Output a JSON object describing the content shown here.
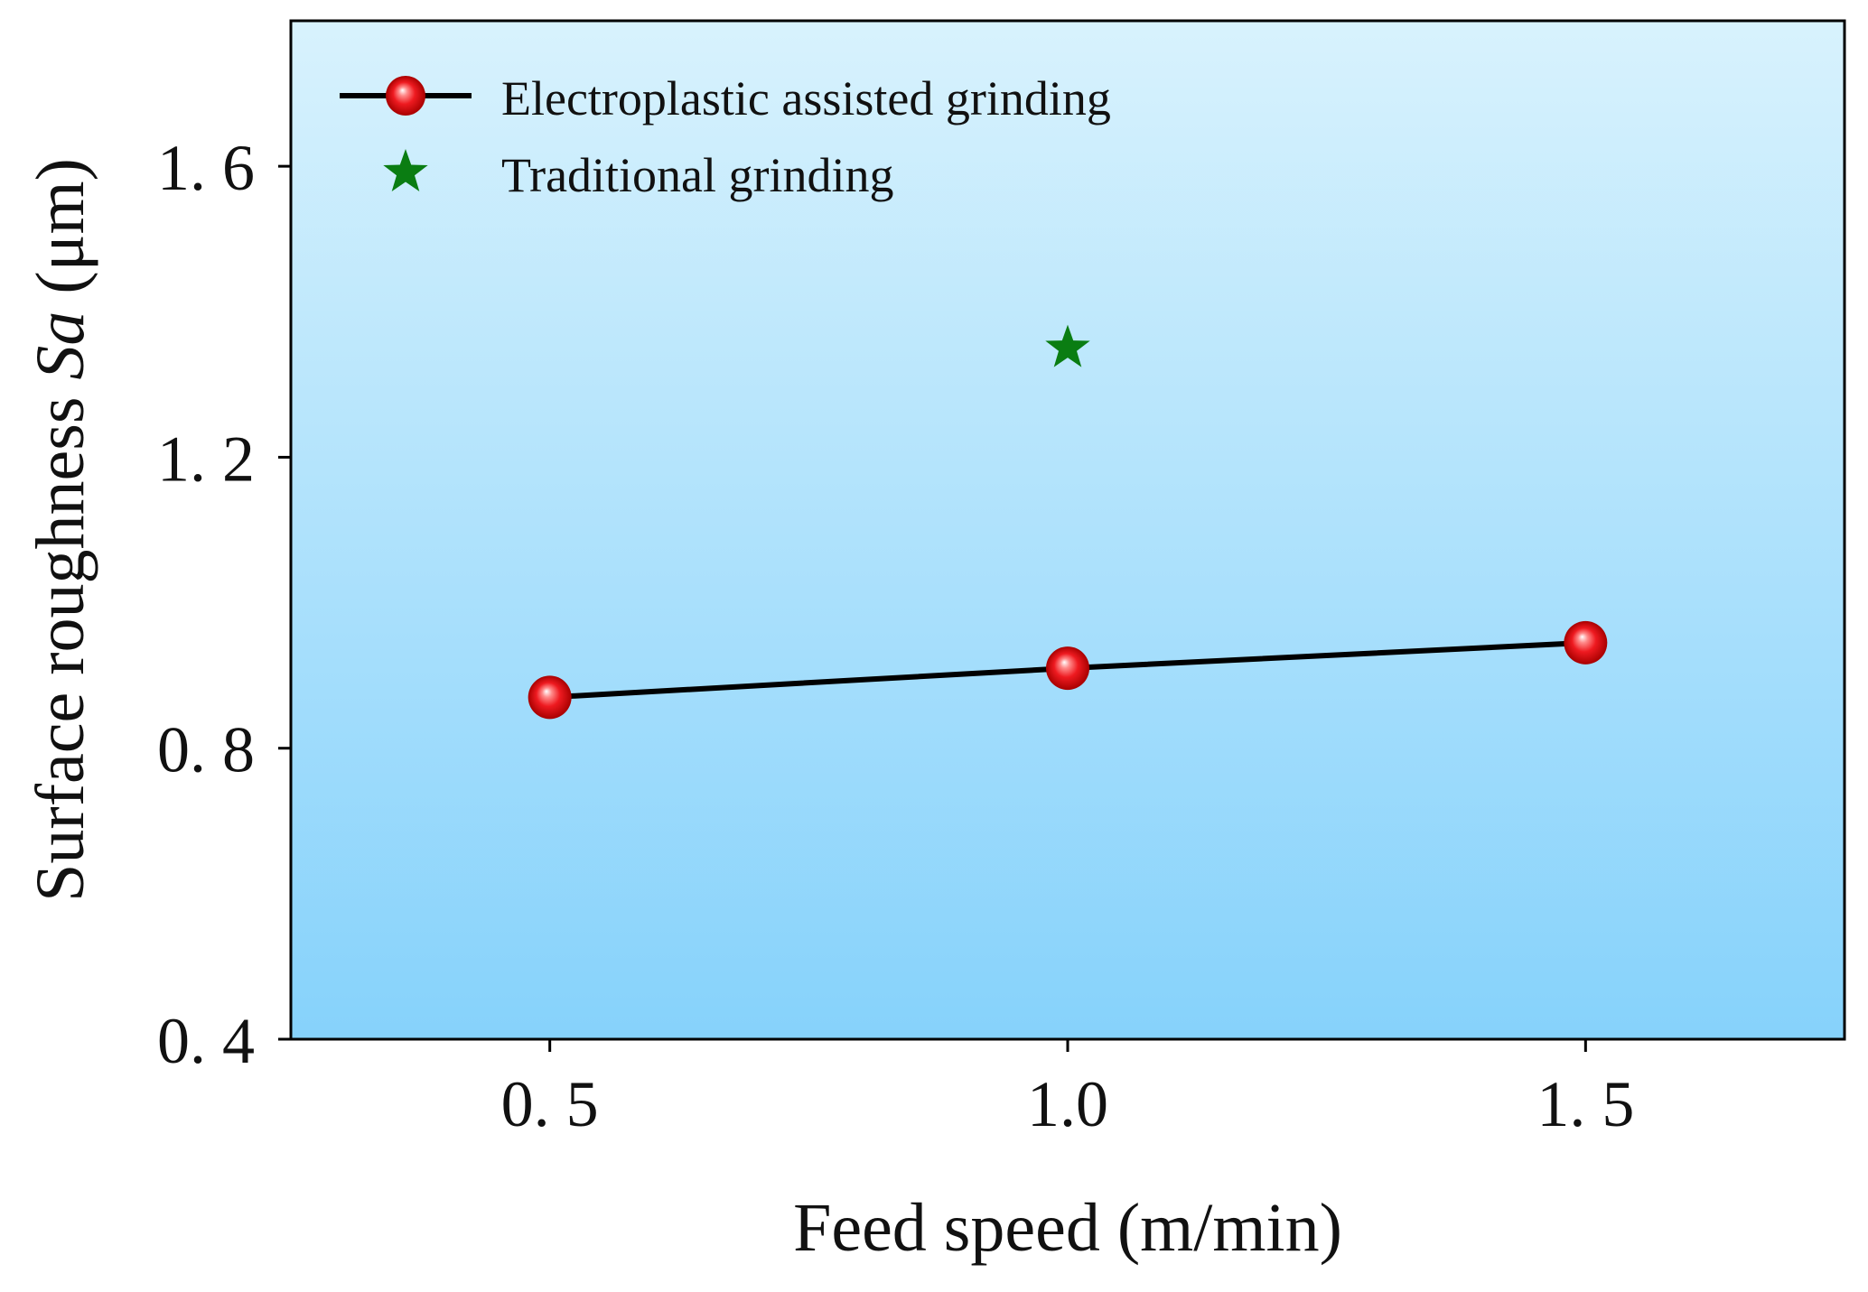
{
  "chart_data": {
    "type": "line",
    "title": "",
    "xlabel": "Feed speed (m/min)",
    "ylabel": "Surface roughness Sa (μm)",
    "ylabel_parts": {
      "prefix": "Surface roughness ",
      "italic": "Sa",
      "suffix": " (μm)"
    },
    "xlim": [
      0.25,
      1.75
    ],
    "ylim": [
      0.4,
      1.8
    ],
    "xticks": [
      0.5,
      1.0,
      1.5
    ],
    "xtick_labels": [
      "0. 5",
      "1.0",
      "1. 5"
    ],
    "yticks": [
      0.4,
      0.8,
      1.2,
      1.6
    ],
    "ytick_labels": [
      "0. 4",
      "0. 8",
      "1. 2",
      "1. 6"
    ],
    "grid": false,
    "legend_position": "top-left",
    "background_gradient": {
      "top": "#d8f2fd",
      "bottom": "#86d2fb"
    },
    "series": [
      {
        "name": "Electroplastic assisted grinding",
        "type": "line-marker",
        "marker": "sphere",
        "line_color": "#000000",
        "marker_color": "#e8141c",
        "x": [
          0.5,
          1.0,
          1.5
        ],
        "y": [
          0.87,
          0.91,
          0.945
        ]
      },
      {
        "name": "Traditional grinding",
        "type": "scatter",
        "marker": "star",
        "marker_color": "#0a7d12",
        "x": [
          1.0
        ],
        "y": [
          1.35
        ]
      }
    ]
  }
}
